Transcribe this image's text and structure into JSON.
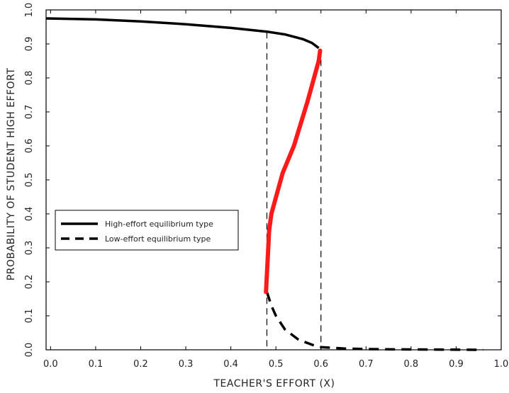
{
  "chart_data": {
    "type": "line",
    "title": "",
    "xlabel": "TEACHER'S EFFORT (X)",
    "ylabel": "PROBABILITY OF STUDENT HIGH EFFORT",
    "xlim": [
      -0.01,
      1.0
    ],
    "ylim": [
      0.0,
      1.0
    ],
    "xticks": [
      "0.0",
      "0.1",
      "0.2",
      "0.3",
      "0.4",
      "0.5",
      "0.6",
      "0.7",
      "0.8",
      "0.9",
      "1.0"
    ],
    "yticks": [
      "0.0",
      "0.1",
      "0.2",
      "0.3",
      "0.4",
      "0.5",
      "0.6",
      "0.7",
      "0.8",
      "0.9",
      "1.0"
    ],
    "grid": false,
    "legend_position": "middle-left",
    "series": [
      {
        "name": "High-effort equilibrium type",
        "style": "solid",
        "color": "#000000",
        "points": [
          [
            -0.01,
            0.975
          ],
          [
            0.1,
            0.972
          ],
          [
            0.2,
            0.966
          ],
          [
            0.3,
            0.958
          ],
          [
            0.4,
            0.947
          ],
          [
            0.48,
            0.936
          ],
          [
            0.52,
            0.928
          ],
          [
            0.56,
            0.914
          ],
          [
            0.58,
            0.903
          ],
          [
            0.595,
            0.888
          ]
        ]
      },
      {
        "name": "Low-effort equilibrium type",
        "style": "dashed",
        "color": "#000000",
        "points": [
          [
            0.48,
            0.17
          ],
          [
            0.49,
            0.13
          ],
          [
            0.5,
            0.1
          ],
          [
            0.52,
            0.06
          ],
          [
            0.55,
            0.03
          ],
          [
            0.58,
            0.015
          ],
          [
            0.6,
            0.008
          ],
          [
            0.65,
            0.004
          ],
          [
            0.7,
            0.002
          ],
          [
            0.8,
            0.001
          ],
          [
            0.96,
            0.0
          ]
        ]
      },
      {
        "style": "solid",
        "color": "#ff1a1a",
        "points": [
          [
            0.478,
            0.17
          ],
          [
            0.482,
            0.27
          ],
          [
            0.485,
            0.35
          ],
          [
            0.49,
            0.4
          ],
          [
            0.515,
            0.52
          ],
          [
            0.54,
            0.6
          ],
          [
            0.57,
            0.73
          ],
          [
            0.595,
            0.85
          ],
          [
            0.598,
            0.88
          ]
        ]
      }
    ],
    "vlines": [
      0.48,
      0.6
    ]
  }
}
